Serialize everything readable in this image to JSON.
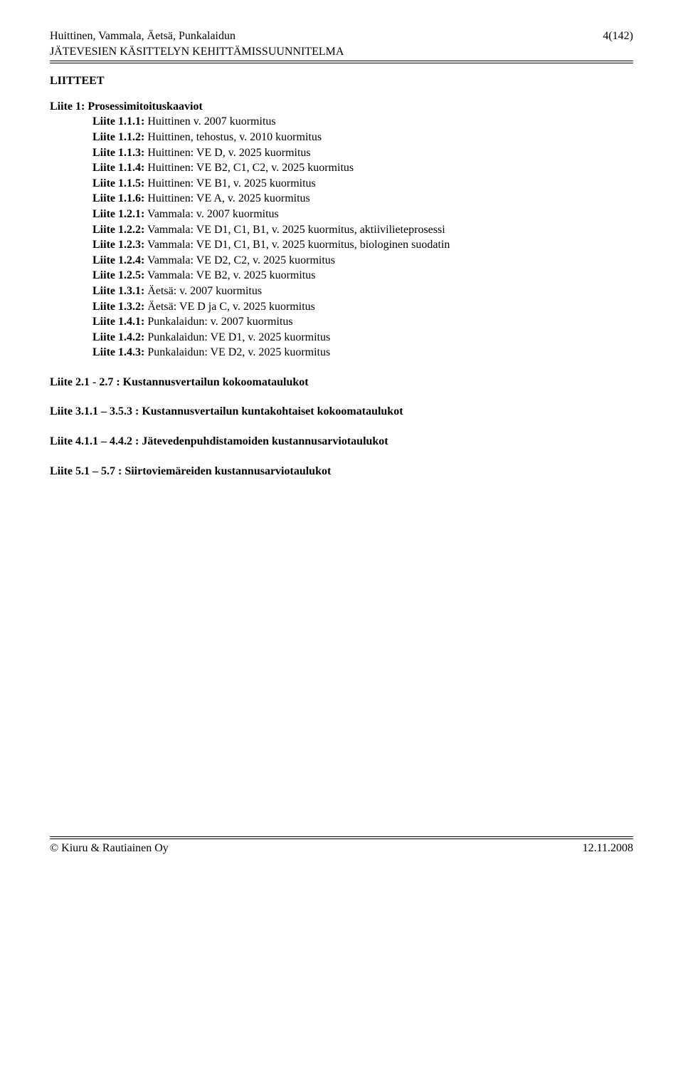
{
  "header": {
    "left_line1": "Huittinen, Vammala, Äetsä, Punkalaidun",
    "left_line2": "JÄTEVESIEN KÄSITTELYN KEHITTÄMISSUUNNITELMA",
    "right": "4(142)"
  },
  "section_title": "LIITTEET",
  "liite1": {
    "title": "Liite 1: Prosessimitoituskaaviot",
    "items": [
      {
        "label": "Liite 1.1.1:",
        "text": " Huittinen v. 2007 kuormitus"
      },
      {
        "label": "Liite 1.1.2:",
        "text": " Huittinen, tehostus, v. 2010 kuormitus"
      },
      {
        "label": "Liite 1.1.3:",
        "text": " Huittinen: VE D, v. 2025 kuormitus"
      },
      {
        "label": "Liite 1.1.4:",
        "text": " Huittinen: VE B2, C1, C2, v. 2025 kuormitus"
      },
      {
        "label": "Liite 1.1.5:",
        "text": " Huittinen: VE B1, v. 2025 kuormitus"
      },
      {
        "label": "Liite 1.1.6:",
        "text": " Huittinen: VE A, v. 2025 kuormitus"
      },
      {
        "label": "Liite 1.2.1:",
        "text": " Vammala:  v. 2007 kuormitus"
      },
      {
        "label": "Liite 1.2.2:",
        "text": " Vammala:  VE D1, C1, B1, v. 2025 kuormitus, aktiivilieteprosessi"
      },
      {
        "label": "Liite 1.2.3:",
        "text": " Vammala:  VE D1, C1, B1, v. 2025 kuormitus, biologinen suodatin"
      },
      {
        "label": "Liite 1.2.4:",
        "text": " Vammala:  VE D2, C2, v. 2025 kuormitus"
      },
      {
        "label": "Liite 1.2.5:",
        "text": " Vammala:  VE B2, v. 2025 kuormitus"
      },
      {
        "label": "Liite 1.3.1:",
        "text": " Äetsä:  v. 2007 kuormitus"
      },
      {
        "label": "Liite 1.3.2:",
        "text": " Äetsä:  VE D ja C, v. 2025 kuormitus"
      },
      {
        "label": "Liite 1.4.1:",
        "text": " Punkalaidun:  v. 2007 kuormitus"
      },
      {
        "label": "Liite 1.4.2:",
        "text": " Punkalaidun:  VE D1, v. 2025 kuormitus"
      },
      {
        "label": "Liite 1.4.3:",
        "text": " Punkalaidun:  VE D2, v. 2025 kuormitus"
      }
    ]
  },
  "outer_items": [
    "Liite 2.1 - 2.7 : Kustannusvertailun kokoomataulukot",
    "Liite 3.1.1 – 3.5.3 : Kustannusvertailun kuntakohtaiset kokoomataulukot",
    "Liite 4.1.1 – 4.4.2 : Jätevedenpuhdistamoiden kustannusarviotaulukot",
    "Liite 5.1 – 5.7 : Siirtoviemäreiden kustannusarviotaulukot"
  ],
  "footer": {
    "left": "© Kiuru & Rautiainen Oy",
    "right": "12.11.2008"
  }
}
